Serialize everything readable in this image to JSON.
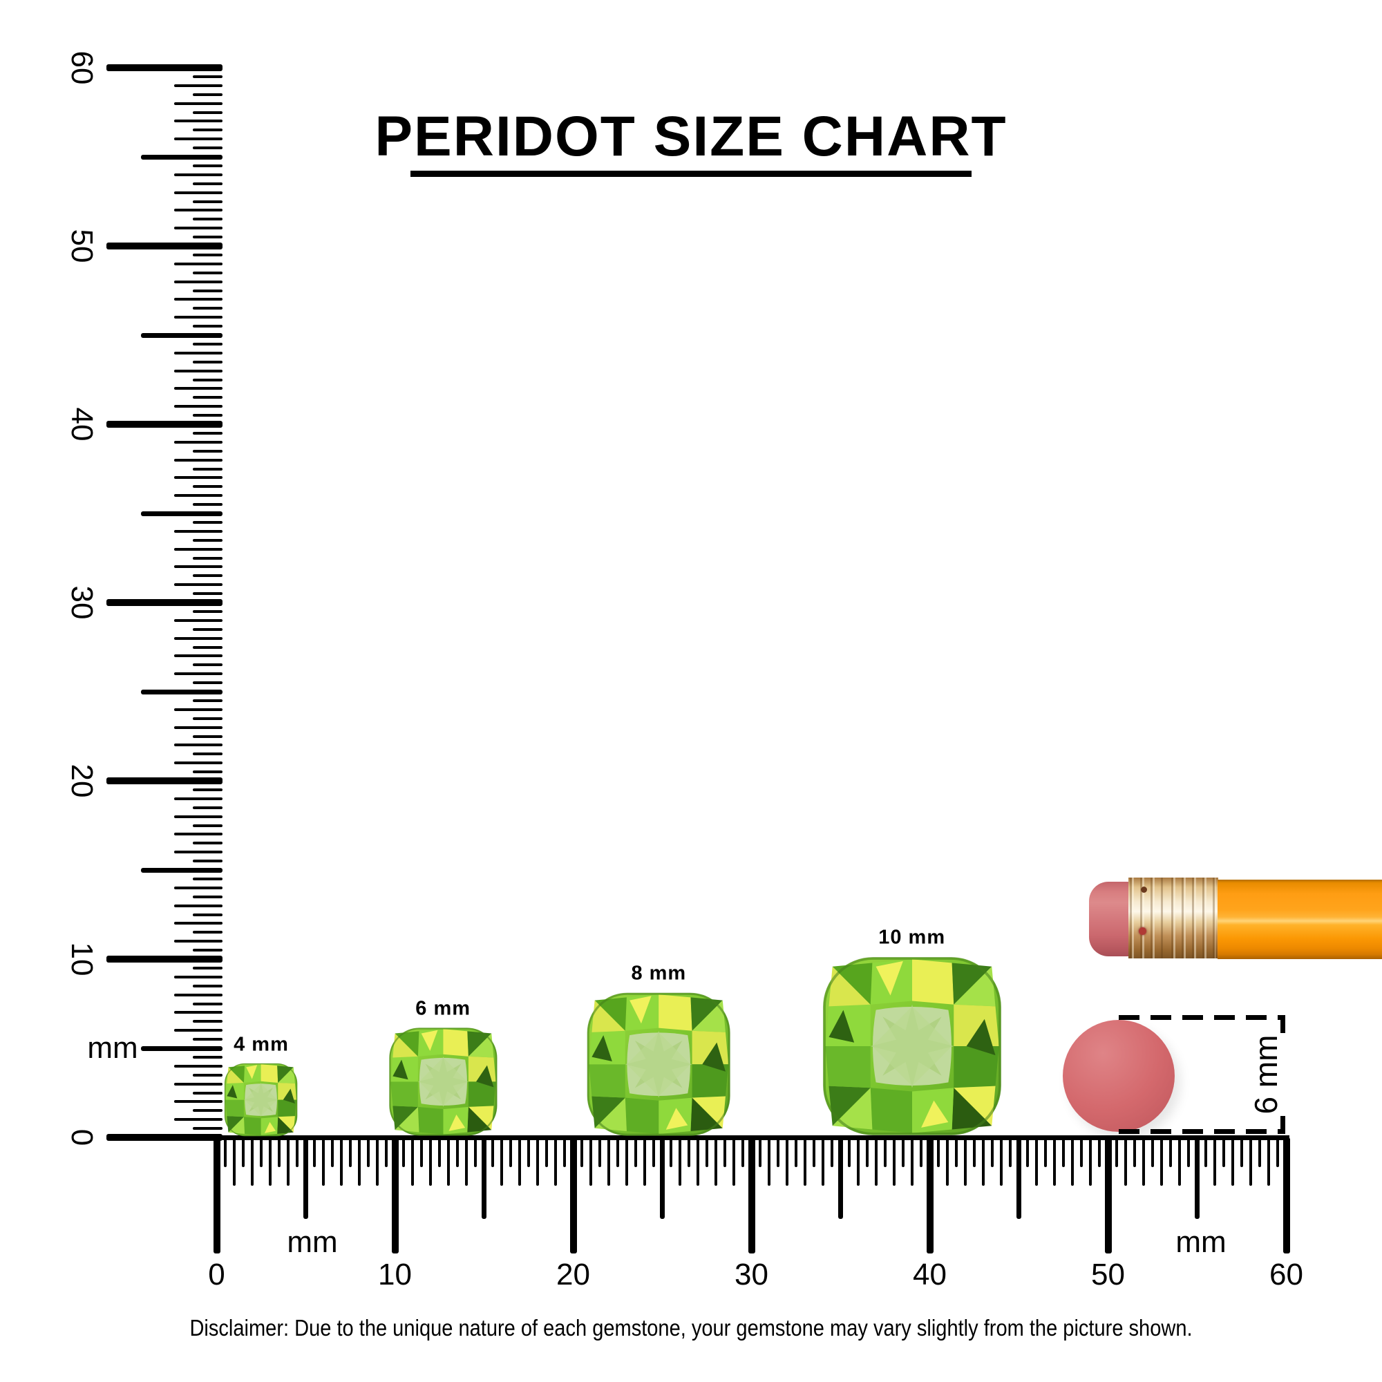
{
  "title": "PERIDOT SIZE CHART",
  "rulers": {
    "unit_label": "mm",
    "labels": [
      "0",
      "10",
      "20",
      "30",
      "40",
      "50",
      "60"
    ],
    "range_mm": [
      0,
      60
    ],
    "tick_step_mm": 0.5,
    "major_step_mm": 10
  },
  "gems": [
    {
      "label": "4 mm",
      "size_mm": 4,
      "position_mm": 2.5
    },
    {
      "label": "6 mm",
      "size_mm": 6,
      "position_mm": 12.7
    },
    {
      "label": "8 mm",
      "size_mm": 8,
      "position_mm": 24.8
    },
    {
      "label": "10 mm",
      "size_mm": 10,
      "position_mm": 39.0
    }
  ],
  "reference": {
    "object": "pencil eraser",
    "size_label": "6 mm",
    "position_mm": 50.5
  },
  "disclaimer": "Disclaimer: Due to the unique nature of each gemstone, your gemstone may vary slightly from the picture shown.",
  "colors": {
    "ink": "#000000",
    "peridot_bright": "#8fd93c",
    "peridot_yellow": "#e9ef55",
    "peridot_dark": "#2b5c10",
    "peridot_table": "#bdd89a",
    "eraser_pink": "#d4696d",
    "pencil_orange": "#ff9d13",
    "ferrule_gold": "#e3c48d"
  },
  "chart_data": {
    "type": "size-comparison",
    "title": "PERIDOT SIZE CHART",
    "unit": "mm",
    "ruler_range_mm": [
      0,
      60
    ],
    "ruler_tick_step_mm": 0.5,
    "ruler_major_step_mm": 10,
    "ruler_axis_labels": [
      "0",
      "10",
      "20",
      "30",
      "40",
      "50",
      "60"
    ],
    "gem_cut": "cushion",
    "gem_sizes_mm": [
      4,
      6,
      8,
      10
    ],
    "gem_labels": [
      "4 mm",
      "6 mm",
      "8 mm",
      "10 mm"
    ],
    "gem_center_positions_mm": [
      2.5,
      12.7,
      24.8,
      39.0
    ],
    "reference_object": "pencil eraser",
    "reference_diameter_label": "6 mm",
    "reference_center_position_mm": 50.5,
    "legend_position": "none",
    "grid": false,
    "disclaimer": "Disclaimer: Due to the unique nature of each gemstone, your gemstone may vary slightly from the picture shown."
  }
}
